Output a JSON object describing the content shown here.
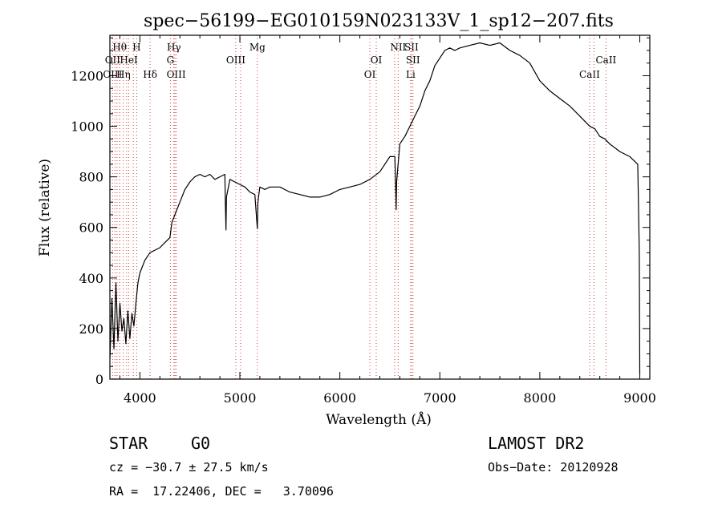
{
  "chart_data": {
    "type": "line",
    "title": "spec−56199−EG010159N023133V_1_sp12−207.fits",
    "xlabel": "Wavelength (Å)",
    "ylabel": "Flux (relative)",
    "xlim": [
      3700,
      9100
    ],
    "ylim": [
      0,
      1360
    ],
    "xticks": [
      4000,
      5000,
      6000,
      7000,
      8000,
      9000
    ],
    "xtick_labels": [
      "4000",
      "5000",
      "6000",
      "7000",
      "8000",
      "9000"
    ],
    "yticks": [
      0,
      200,
      400,
      600,
      800,
      1000,
      1200
    ],
    "ytick_labels": [
      "0",
      "200",
      "400",
      "600",
      "800",
      "1000",
      "1200"
    ],
    "grid": false,
    "series": [
      {
        "color": "#000000",
        "x": [
          3700,
          3720,
          3740,
          3760,
          3780,
          3800,
          3820,
          3840,
          3860,
          3880,
          3900,
          3920,
          3940,
          3960,
          3980,
          4000,
          4050,
          4100,
          4150,
          4200,
          4250,
          4300,
          4320,
          4350,
          4400,
          4450,
          4500,
          4550,
          4600,
          4650,
          4700,
          4750,
          4800,
          4850,
          4855,
          4861,
          4866,
          4900,
          4950,
          5000,
          5050,
          5100,
          5150,
          5170,
          5175,
          5180,
          5200,
          5250,
          5300,
          5400,
          5500,
          5600,
          5700,
          5800,
          5900,
          6000,
          6100,
          6200,
          6300,
          6400,
          6500,
          6550,
          6558,
          6563,
          6568,
          6600,
          6650,
          6700,
          6750,
          6800,
          6850,
          6900,
          6950,
          7000,
          7050,
          7100,
          7150,
          7200,
          7300,
          7400,
          7500,
          7600,
          7700,
          7800,
          7900,
          8000,
          8100,
          8200,
          8300,
          8400,
          8500,
          8550,
          8600,
          8650,
          8700,
          8800,
          8900,
          8980,
          8995,
          9000
        ],
        "y": [
          80,
          320,
          120,
          380,
          150,
          300,
          190,
          240,
          140,
          270,
          160,
          260,
          210,
          300,
          380,
          420,
          470,
          500,
          510,
          520,
          540,
          560,
          620,
          650,
          700,
          750,
          780,
          800,
          810,
          800,
          810,
          790,
          800,
          810,
          700,
          590,
          720,
          790,
          780,
          770,
          760,
          740,
          730,
          620,
          595,
          700,
          760,
          750,
          760,
          760,
          740,
          730,
          720,
          720,
          730,
          750,
          760,
          770,
          790,
          820,
          880,
          880,
          760,
          670,
          780,
          930,
          960,
          1000,
          1040,
          1080,
          1140,
          1180,
          1240,
          1270,
          1300,
          1310,
          1300,
          1310,
          1320,
          1330,
          1320,
          1330,
          1300,
          1280,
          1250,
          1180,
          1140,
          1110,
          1080,
          1040,
          1000,
          990,
          960,
          950,
          930,
          900,
          880,
          850,
          500,
          20
        ]
      }
    ],
    "line_markers": [
      {
        "label": "Hθ",
        "x": 3797,
        "pos": "top"
      },
      {
        "label": "H",
        "x": 3968,
        "pos": "top"
      },
      {
        "label": "Hγ",
        "x": 4340,
        "pos": "top"
      },
      {
        "label": "Mg",
        "x": 5175,
        "pos": "top"
      },
      {
        "label": "NII",
        "x": 6583,
        "pos": "top"
      },
      {
        "label": "SII",
        "x": 6716,
        "pos": "top"
      },
      {
        "label": "OII",
        "x": 3727,
        "pos": "mid"
      },
      {
        "label": "HeI",
        "x": 3889,
        "pos": "mid"
      },
      {
        "label": "G",
        "x": 4305,
        "pos": "mid"
      },
      {
        "label": "OIII",
        "x": 4959,
        "pos": "mid"
      },
      {
        "label": "OI",
        "x": 6364,
        "pos": "mid"
      },
      {
        "label": "SII",
        "x": 6731,
        "pos": "mid"
      },
      {
        "label": "CaII",
        "x": 8662,
        "pos": "mid"
      },
      {
        "label": "OIII",
        "x": 3727,
        "pos": "low"
      },
      {
        "label": "Hη",
        "x": 3835,
        "pos": "low"
      },
      {
        "label": "Hδ",
        "x": 4102,
        "pos": "low"
      },
      {
        "label": "OIII",
        "x": 4363,
        "pos": "low"
      },
      {
        "label": "OI",
        "x": 6300,
        "pos": "low"
      },
      {
        "label": "Li",
        "x": 6708,
        "pos": "low"
      },
      {
        "label": "CaII",
        "x": 8498,
        "pos": "low"
      }
    ],
    "marker_extra_lines": [
      3750,
      3771,
      3798,
      3868,
      3934,
      4350,
      5007,
      6548,
      8542
    ]
  },
  "info": {
    "object_class": "STAR",
    "subclass": "G0",
    "survey": "LAMOST DR2",
    "cz": "cz = −30.7 ± 27.5 km/s",
    "obs_date": "Obs−Date: 20120928",
    "coords": "RA =  17.22406, DEC =   3.70096"
  }
}
